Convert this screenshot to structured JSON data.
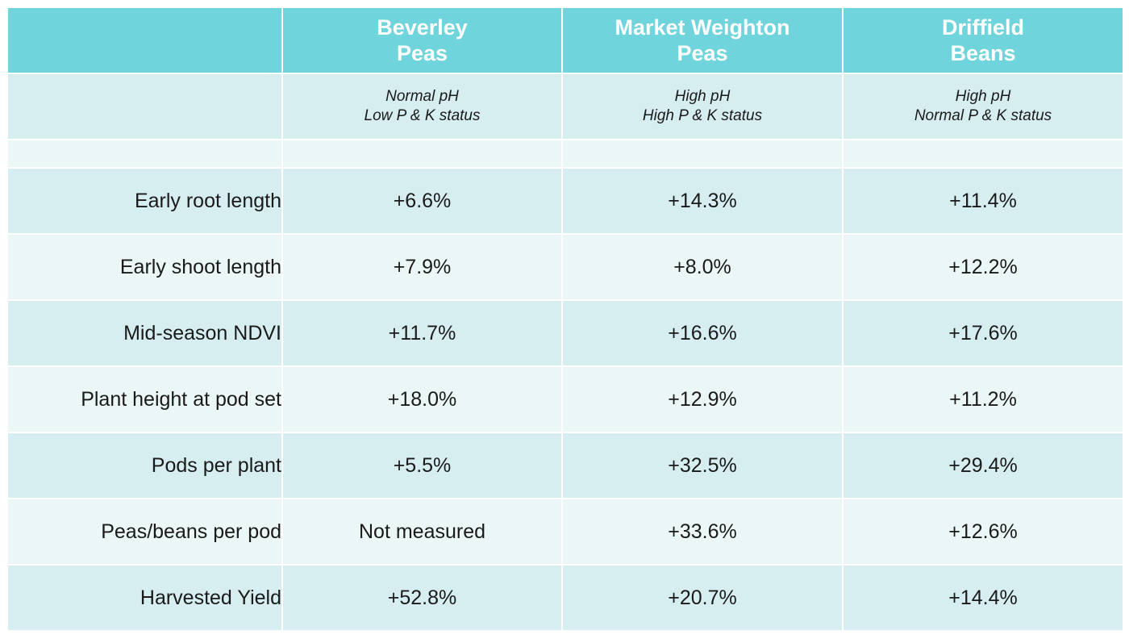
{
  "header": {
    "columns": [
      {
        "line1": "Beverley",
        "line2": "Peas"
      },
      {
        "line1": "Market Weighton",
        "line2": "Peas"
      },
      {
        "line1": "Driffield",
        "line2": "Beans"
      }
    ]
  },
  "conditions": [
    {
      "line1": "Normal pH",
      "line2": "Low P & K status"
    },
    {
      "line1": "High pH",
      "line2": "High P & K status"
    },
    {
      "line1": "High pH",
      "line2": "Normal P & K status"
    }
  ],
  "rows": [
    {
      "label": "Early root length",
      "values": [
        "+6.6%",
        "+14.3%",
        "+11.4%"
      ]
    },
    {
      "label": "Early shoot length",
      "values": [
        "+7.9%",
        "+8.0%",
        "+12.2%"
      ]
    },
    {
      "label": "Mid-season NDVI",
      "values": [
        "+11.7%",
        "+16.6%",
        "+17.6%"
      ]
    },
    {
      "label": "Plant height at pod set",
      "values": [
        "+18.0%",
        "+12.9%",
        "+11.2%"
      ]
    },
    {
      "label": "Pods per plant",
      "values": [
        "+5.5%",
        "+32.5%",
        "+29.4%"
      ]
    },
    {
      "label": "Peas/beans per pod",
      "values": [
        "Not measured",
        "+33.6%",
        "+12.6%"
      ]
    },
    {
      "label": "Harvested Yield",
      "values": [
        "+52.8%",
        "+20.7%",
        "+14.4%"
      ]
    }
  ],
  "colors": {
    "header_bg": "#6fd4dc",
    "row_dark": "#d6eef0",
    "row_light": "#ebf6f7"
  }
}
